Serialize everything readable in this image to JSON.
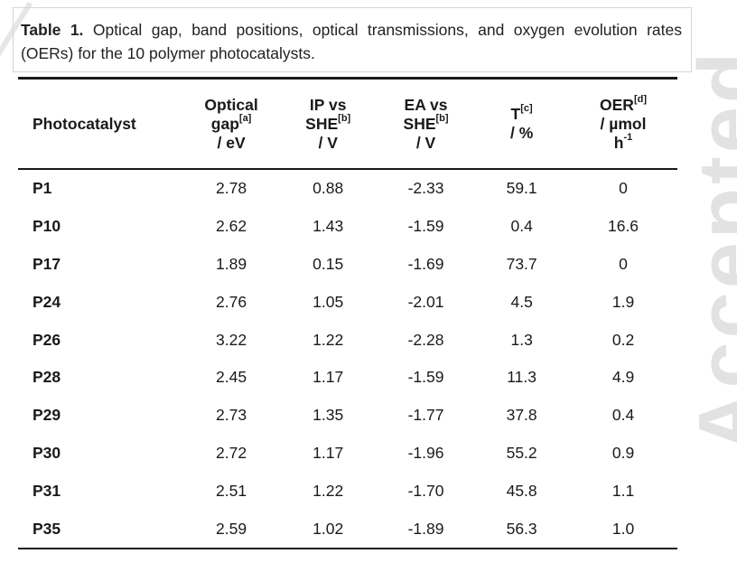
{
  "watermark": "Accepted",
  "caption": {
    "label": "Table 1.",
    "text": "Optical gap, band positions, optical transmissions, and oxygen evolution rates (OERs) for the 10 polymer photocatalysts."
  },
  "table": {
    "headers": [
      {
        "main": "Photocatalyst"
      },
      {
        "l1": "Optical",
        "l2": "gap",
        "sup": "[a]",
        "l3": "/ eV"
      },
      {
        "l1": "IP vs",
        "l2": "SHE",
        "sup": "[b]",
        "l3": "/ V"
      },
      {
        "l1": "EA vs",
        "l2": "SHE",
        "sup": "[b]",
        "l3": "/ V"
      },
      {
        "l1": "T",
        "sup": "[c]",
        "l2": "/ %"
      },
      {
        "l1": "OER",
        "sup": "[d]",
        "l2": "/ µmol",
        "l3": "h",
        "sup2": "-1"
      }
    ],
    "rows": [
      [
        "P1",
        "2.78",
        "0.88",
        "-2.33",
        "59.1",
        "0"
      ],
      [
        "P10",
        "2.62",
        "1.43",
        "-1.59",
        "0.4",
        "16.6"
      ],
      [
        "P17",
        "1.89",
        "0.15",
        "-1.69",
        "73.7",
        "0"
      ],
      [
        "P24",
        "2.76",
        "1.05",
        "-2.01",
        "4.5",
        "1.9"
      ],
      [
        "P26",
        "3.22",
        "1.22",
        "-2.28",
        "1.3",
        "0.2"
      ],
      [
        "P28",
        "2.45",
        "1.17",
        "-1.59",
        "11.3",
        "4.9"
      ],
      [
        "P29",
        "2.73",
        "1.35",
        "-1.77",
        "37.8",
        "0.4"
      ],
      [
        "P30",
        "2.72",
        "1.17",
        "-1.96",
        "55.2",
        "0.9"
      ],
      [
        "P31",
        "2.51",
        "1.22",
        "-1.70",
        "45.8",
        "1.1"
      ],
      [
        "P35",
        "2.59",
        "1.02",
        "-1.89",
        "56.3",
        "1.0"
      ]
    ]
  }
}
